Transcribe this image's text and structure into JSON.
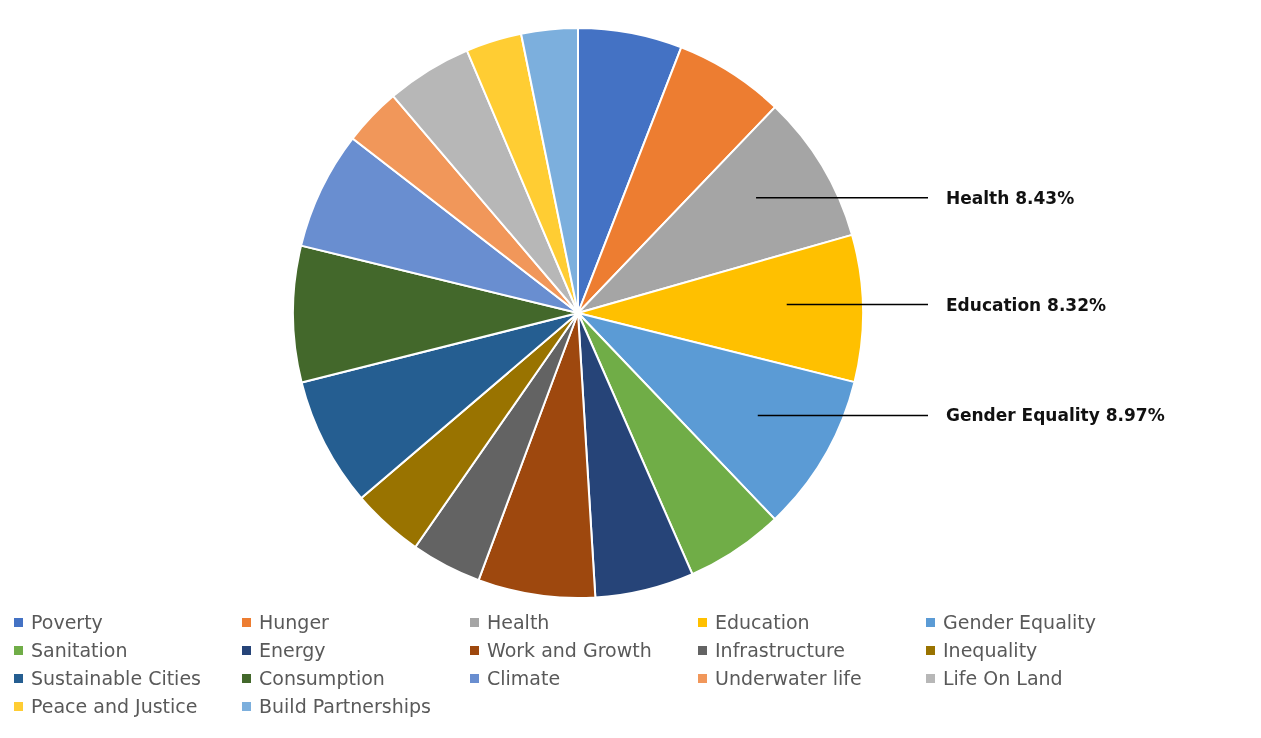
{
  "chart_data": {
    "type": "pie",
    "categories": [
      "Poverty",
      "Hunger",
      "Health",
      "Education",
      "Gender Equality",
      "Sanitation",
      "Energy",
      "Work and Growth",
      "Infrastructure",
      "Inequality",
      "Sustainable Cities",
      "Consumption",
      "Climate",
      "Underwater life",
      "Life On Land",
      "Peace and Justice",
      "Build Partnerships"
    ],
    "values": [
      5.9,
      6.25,
      8.43,
      8.32,
      8.97,
      5.56,
      5.6,
      6.64,
      4.0,
      4.08,
      7.33,
      7.72,
      6.69,
      3.28,
      4.86,
      3.17,
      3.2
    ],
    "colors": [
      "#4472c4",
      "#ed7d31",
      "#a5a5a5",
      "#ffc000",
      "#5b9bd5",
      "#70ad47",
      "#264478",
      "#9e480e",
      "#636363",
      "#997300",
      "#255e91",
      "#43682b",
      "#698ed0",
      "#f1975a",
      "#b7b7b7",
      "#ffcd33",
      "#7cafdd"
    ],
    "value_labels": [
      null,
      null,
      "8.43%",
      "8.32%",
      "8.97%",
      null,
      null,
      null,
      null,
      null,
      null,
      null,
      null,
      null,
      null,
      null,
      null
    ],
    "legend": "bottom"
  }
}
